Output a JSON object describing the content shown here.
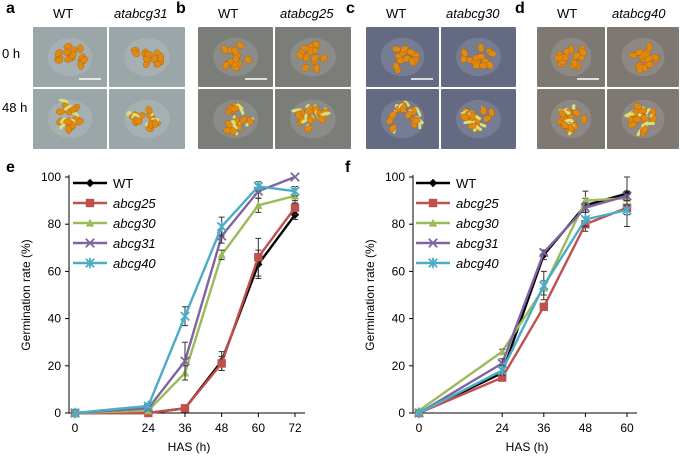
{
  "figure": {
    "photo_rows": [
      "0 h",
      "48 h"
    ],
    "photo_panels": [
      {
        "letter": "a",
        "wt_label": "WT",
        "mutant_label": "atabcg31",
        "bg": "#9aa6a8"
      },
      {
        "letter": "b",
        "wt_label": "WT",
        "mutant_label": "atabcg25",
        "bg": "#7b7d78"
      },
      {
        "letter": "c",
        "wt_label": "WT",
        "mutant_label": "atabcg30",
        "bg": "#646a82"
      },
      {
        "letter": "d",
        "wt_label": "WT",
        "mutant_label": "atabcg40",
        "bg": "#7e7872"
      }
    ],
    "seed_color": "#e08a12",
    "sprout_color": "#d9e07a"
  },
  "chart_data": [
    {
      "panel": "e",
      "type": "line",
      "xlabel": "HAS (h)",
      "ylabel": "Germination rate (%)",
      "x": [
        0,
        24,
        36,
        48,
        60,
        72
      ],
      "xlim": [
        0,
        72
      ],
      "ylim": [
        0,
        100
      ],
      "yticks": [
        0,
        20,
        40,
        60,
        80,
        100
      ],
      "legend_position": "top-left",
      "series": [
        {
          "name": "WT",
          "color": "#000000",
          "marker": "diamond",
          "values": [
            0,
            0,
            2,
            22,
            63,
            84
          ],
          "errors": [
            0,
            0,
            1,
            4,
            6,
            2
          ]
        },
        {
          "name": "abcg25",
          "color": "#c0504d",
          "marker": "square",
          "values": [
            0,
            0,
            2,
            21,
            66,
            87
          ],
          "errors": [
            0,
            0,
            1,
            3,
            8,
            3
          ]
        },
        {
          "name": "abcg30",
          "color": "#9bbb59",
          "marker": "triangle",
          "values": [
            0,
            1,
            17,
            67,
            88,
            92
          ],
          "errors": [
            0,
            1,
            3,
            2,
            3,
            3
          ]
        },
        {
          "name": "abcg31",
          "color": "#8064a2",
          "marker": "x",
          "values": [
            0,
            2,
            22,
            75,
            94,
            100
          ],
          "errors": [
            0,
            1,
            8,
            3,
            3,
            0
          ]
        },
        {
          "name": "abcg40",
          "color": "#4bacc6",
          "marker": "star",
          "values": [
            0,
            3,
            41,
            79,
            96,
            94
          ],
          "errors": [
            0,
            1,
            4,
            4,
            2,
            2
          ]
        }
      ]
    },
    {
      "panel": "f",
      "type": "line",
      "xlabel": "HAS (h)",
      "ylabel": "Germination rate (%)",
      "x": [
        0,
        24,
        36,
        48,
        60
      ],
      "xlim": [
        0,
        60
      ],
      "ylim": [
        0,
        100
      ],
      "yticks": [
        0,
        20,
        40,
        60,
        80,
        100
      ],
      "legend_position": "top-left",
      "series": [
        {
          "name": "WT",
          "color": "#000000",
          "marker": "diamond",
          "values": [
            0,
            17,
            67,
            88,
            93
          ],
          "errors": [
            0,
            2,
            2,
            3,
            7
          ]
        },
        {
          "name": "abcg25",
          "color": "#c0504d",
          "marker": "square",
          "values": [
            0,
            15,
            45,
            80,
            87
          ],
          "errors": [
            0,
            1,
            1,
            3,
            3
          ]
        },
        {
          "name": "abcg30",
          "color": "#9bbb59",
          "marker": "triangle",
          "values": [
            1,
            26,
            53,
            90,
            91
          ],
          "errors": [
            0,
            1,
            3,
            4,
            3
          ]
        },
        {
          "name": "abcg31",
          "color": "#8064a2",
          "marker": "x",
          "values": [
            0,
            21,
            68,
            87,
            92
          ],
          "errors": [
            0,
            2,
            1,
            2,
            2
          ]
        },
        {
          "name": "abcg40",
          "color": "#4bacc6",
          "marker": "star",
          "values": [
            0,
            18,
            54,
            82,
            86
          ],
          "errors": [
            0,
            2,
            6,
            3,
            7
          ]
        }
      ]
    }
  ]
}
